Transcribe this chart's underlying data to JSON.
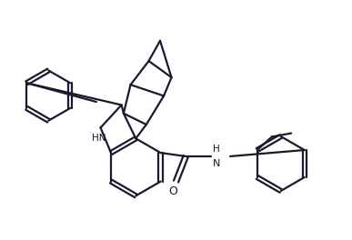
{
  "bg_color": "#ffffff",
  "line_color": "#1a1a2e",
  "line_width": 1.6,
  "figsize": [
    3.87,
    2.64
  ],
  "dpi": 100,
  "xlim": [
    0,
    10
  ],
  "ylim": [
    0,
    6.8
  ]
}
